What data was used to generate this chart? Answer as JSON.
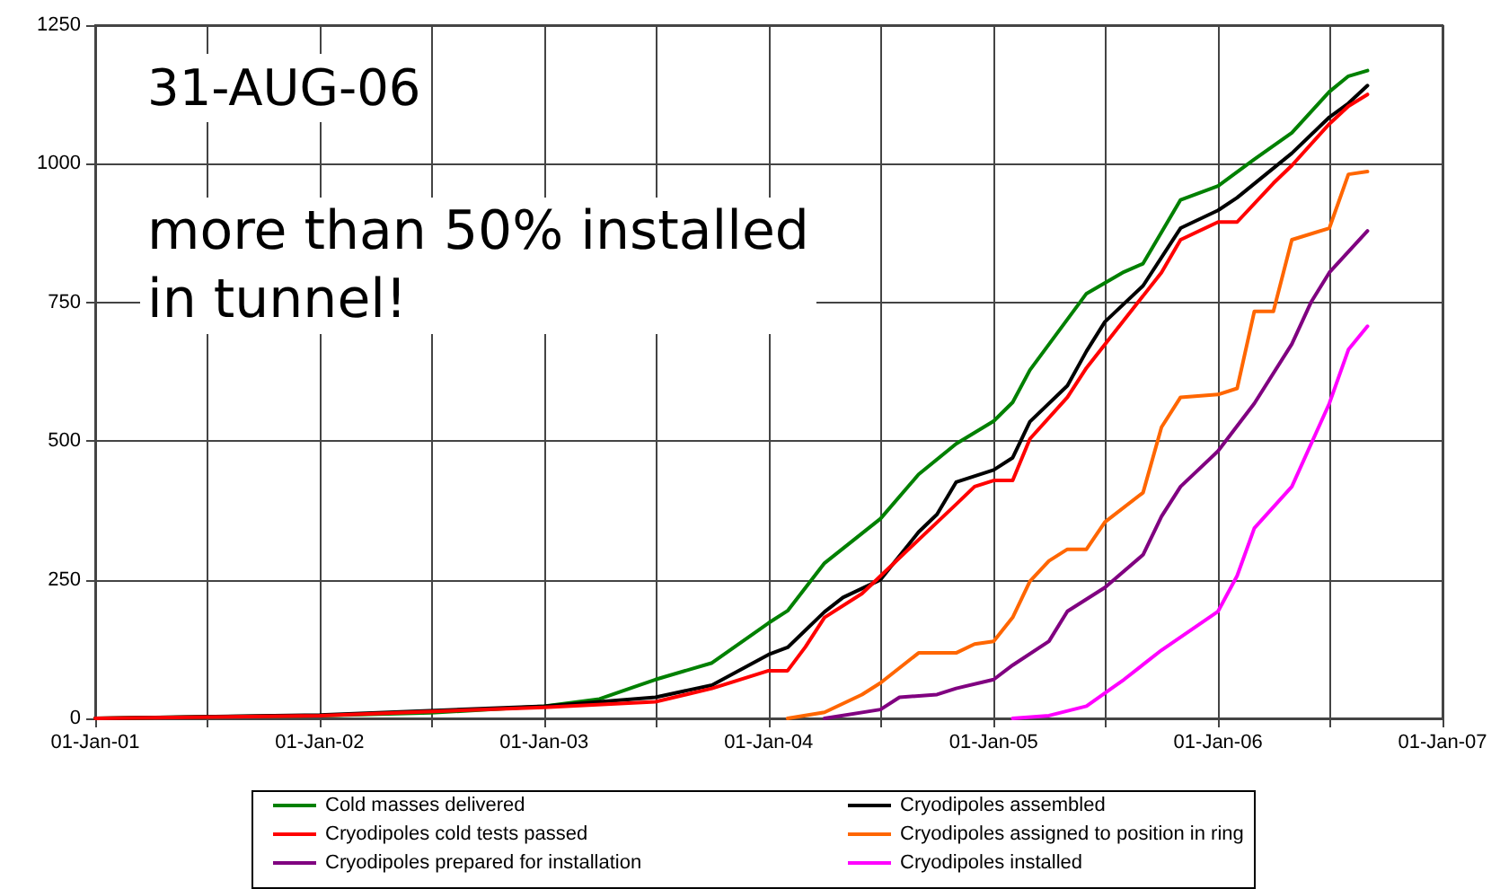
{
  "chart_data": {
    "type": "line",
    "annotations": [
      "31-AUG-06",
      "more than 50% installed\nin tunnel!"
    ],
    "xlim": [
      "2001-01-01",
      "2007-01-01"
    ],
    "xticks": [
      {
        "value": "2001-01-01",
        "label": "01-Jan-01"
      },
      {
        "value": "2001-07-01",
        "label": null
      },
      {
        "value": "2002-01-01",
        "label": "01-Jan-02"
      },
      {
        "value": "2002-07-01",
        "label": null
      },
      {
        "value": "2003-01-01",
        "label": "01-Jan-03"
      },
      {
        "value": "2003-07-01",
        "label": null
      },
      {
        "value": "2004-01-01",
        "label": "01-Jan-04"
      },
      {
        "value": "2004-07-01",
        "label": null
      },
      {
        "value": "2005-01-01",
        "label": "01-Jan-05"
      },
      {
        "value": "2005-07-01",
        "label": null
      },
      {
        "value": "2006-01-01",
        "label": "01-Jan-06"
      },
      {
        "value": "2006-07-01",
        "label": null
      },
      {
        "value": "2007-01-01",
        "label": "01-Jan-07"
      }
    ],
    "ylim": [
      0,
      1250
    ],
    "yticks": [
      0,
      250,
      500,
      750,
      1000,
      1250
    ],
    "grid": true,
    "legend": "bottom",
    "marker": "none",
    "line_style": "solid",
    "series": [
      {
        "name": "Cold masses delivered",
        "color": "#008000",
        "x": [
          "2001-01",
          "2001-07",
          "2002-01",
          "2002-07",
          "2003-01",
          "2003-04",
          "2003-07",
          "2003-10",
          "2004-01",
          "2004-02",
          "2004-04",
          "2004-07",
          "2004-09",
          "2004-11",
          "2005-01",
          "2005-02",
          "2005-03",
          "2005-06",
          "2005-08",
          "2005-09",
          "2005-11",
          "2006-01",
          "2006-03",
          "2006-05",
          "2006-07",
          "2006-08",
          "2006-09"
        ],
        "values": [
          0,
          3,
          5,
          10,
          22,
          35,
          70,
          100,
          172,
          194,
          280,
          360,
          440,
          495,
          536,
          570,
          628,
          766,
          805,
          820,
          935,
          960,
          1008,
          1056,
          1130,
          1158,
          1168
        ]
      },
      {
        "name": "Cryodipoles assembled",
        "color": "#000000",
        "x": [
          "2001-01",
          "2002-01",
          "2003-01",
          "2003-07",
          "2003-10",
          "2004-01",
          "2004-02",
          "2004-04",
          "2004-05",
          "2004-07",
          "2004-09",
          "2004-10",
          "2004-11",
          "2005-01",
          "2005-02",
          "2005-03",
          "2005-05",
          "2005-06",
          "2005-07",
          "2005-09",
          "2005-11",
          "2006-01",
          "2006-02",
          "2006-05",
          "2006-07",
          "2006-08",
          "2006-09"
        ],
        "values": [
          0,
          6,
          22,
          38,
          60,
          115,
          128,
          192,
          218,
          250,
          336,
          368,
          426,
          448,
          470,
          535,
          600,
          662,
          715,
          780,
          884,
          916,
          939,
          1019,
          1084,
          1109,
          1141
        ]
      },
      {
        "name": "Cryodipoles cold tests passed",
        "color": "#ff0000",
        "x": [
          "2001-01",
          "2002-01",
          "2003-01",
          "2003-07",
          "2003-10",
          "2004-01",
          "2004-02",
          "2004-03",
          "2004-04",
          "2004-06",
          "2004-09",
          "2004-11",
          "2004-12",
          "2005-01",
          "2005-02",
          "2005-03",
          "2005-05",
          "2005-06",
          "2005-08",
          "2005-10",
          "2005-11",
          "2006-01",
          "2006-02",
          "2006-04",
          "2006-05",
          "2006-07",
          "2006-08",
          "2006-09"
        ],
        "values": [
          0,
          5,
          20,
          30,
          54,
          86,
          86,
          129,
          182,
          225,
          322,
          386,
          418,
          429,
          429,
          504,
          579,
          632,
          718,
          804,
          863,
          895,
          895,
          965,
          997,
          1072,
          1104,
          1125
        ]
      },
      {
        "name": "Cryodipoles assigned to position in ring",
        "color": "#ff6600",
        "x": [
          "2004-02",
          "2004-04",
          "2004-06",
          "2004-07",
          "2004-09",
          "2004-11",
          "2004-12",
          "2005-01",
          "2005-02",
          "2005-03",
          "2005-04",
          "2005-05",
          "2005-06",
          "2005-07",
          "2005-09",
          "2005-10",
          "2005-11",
          "2006-01",
          "2006-02",
          "2006-03",
          "2006-04",
          "2006-05",
          "2006-07",
          "2006-08",
          "2006-09"
        ],
        "values": [
          0,
          11,
          43,
          64,
          118,
          118,
          134,
          139,
          182,
          247,
          284,
          305,
          305,
          354,
          407,
          525,
          579,
          584,
          595,
          734,
          734,
          863,
          884,
          981,
          986
        ]
      },
      {
        "name": "Cryodipoles prepared for installation",
        "color": "#800080",
        "x": [
          "2004-04",
          "2004-07",
          "2004-08",
          "2004-10",
          "2004-11",
          "2005-01",
          "2005-02",
          "2005-04",
          "2005-05",
          "2005-07",
          "2005-09",
          "2005-10",
          "2005-11",
          "2006-01",
          "2006-03",
          "2006-05",
          "2006-06",
          "2006-07",
          "2006-09"
        ],
        "values": [
          0,
          16,
          38,
          43,
          54,
          70,
          96,
          139,
          193,
          236,
          295,
          364,
          418,
          482,
          568,
          675,
          750,
          804,
          879
        ]
      },
      {
        "name": "Cryodipoles installed",
        "color": "#ff00ff",
        "x": [
          "2005-02",
          "2005-04",
          "2005-06",
          "2005-08",
          "2005-10",
          "2006-01",
          "2006-02",
          "2006-03",
          "2006-05",
          "2006-07",
          "2006-08",
          "2006-09"
        ],
        "values": [
          0,
          5,
          22,
          70,
          123,
          193,
          257,
          343,
          418,
          568,
          665,
          707
        ]
      }
    ]
  }
}
